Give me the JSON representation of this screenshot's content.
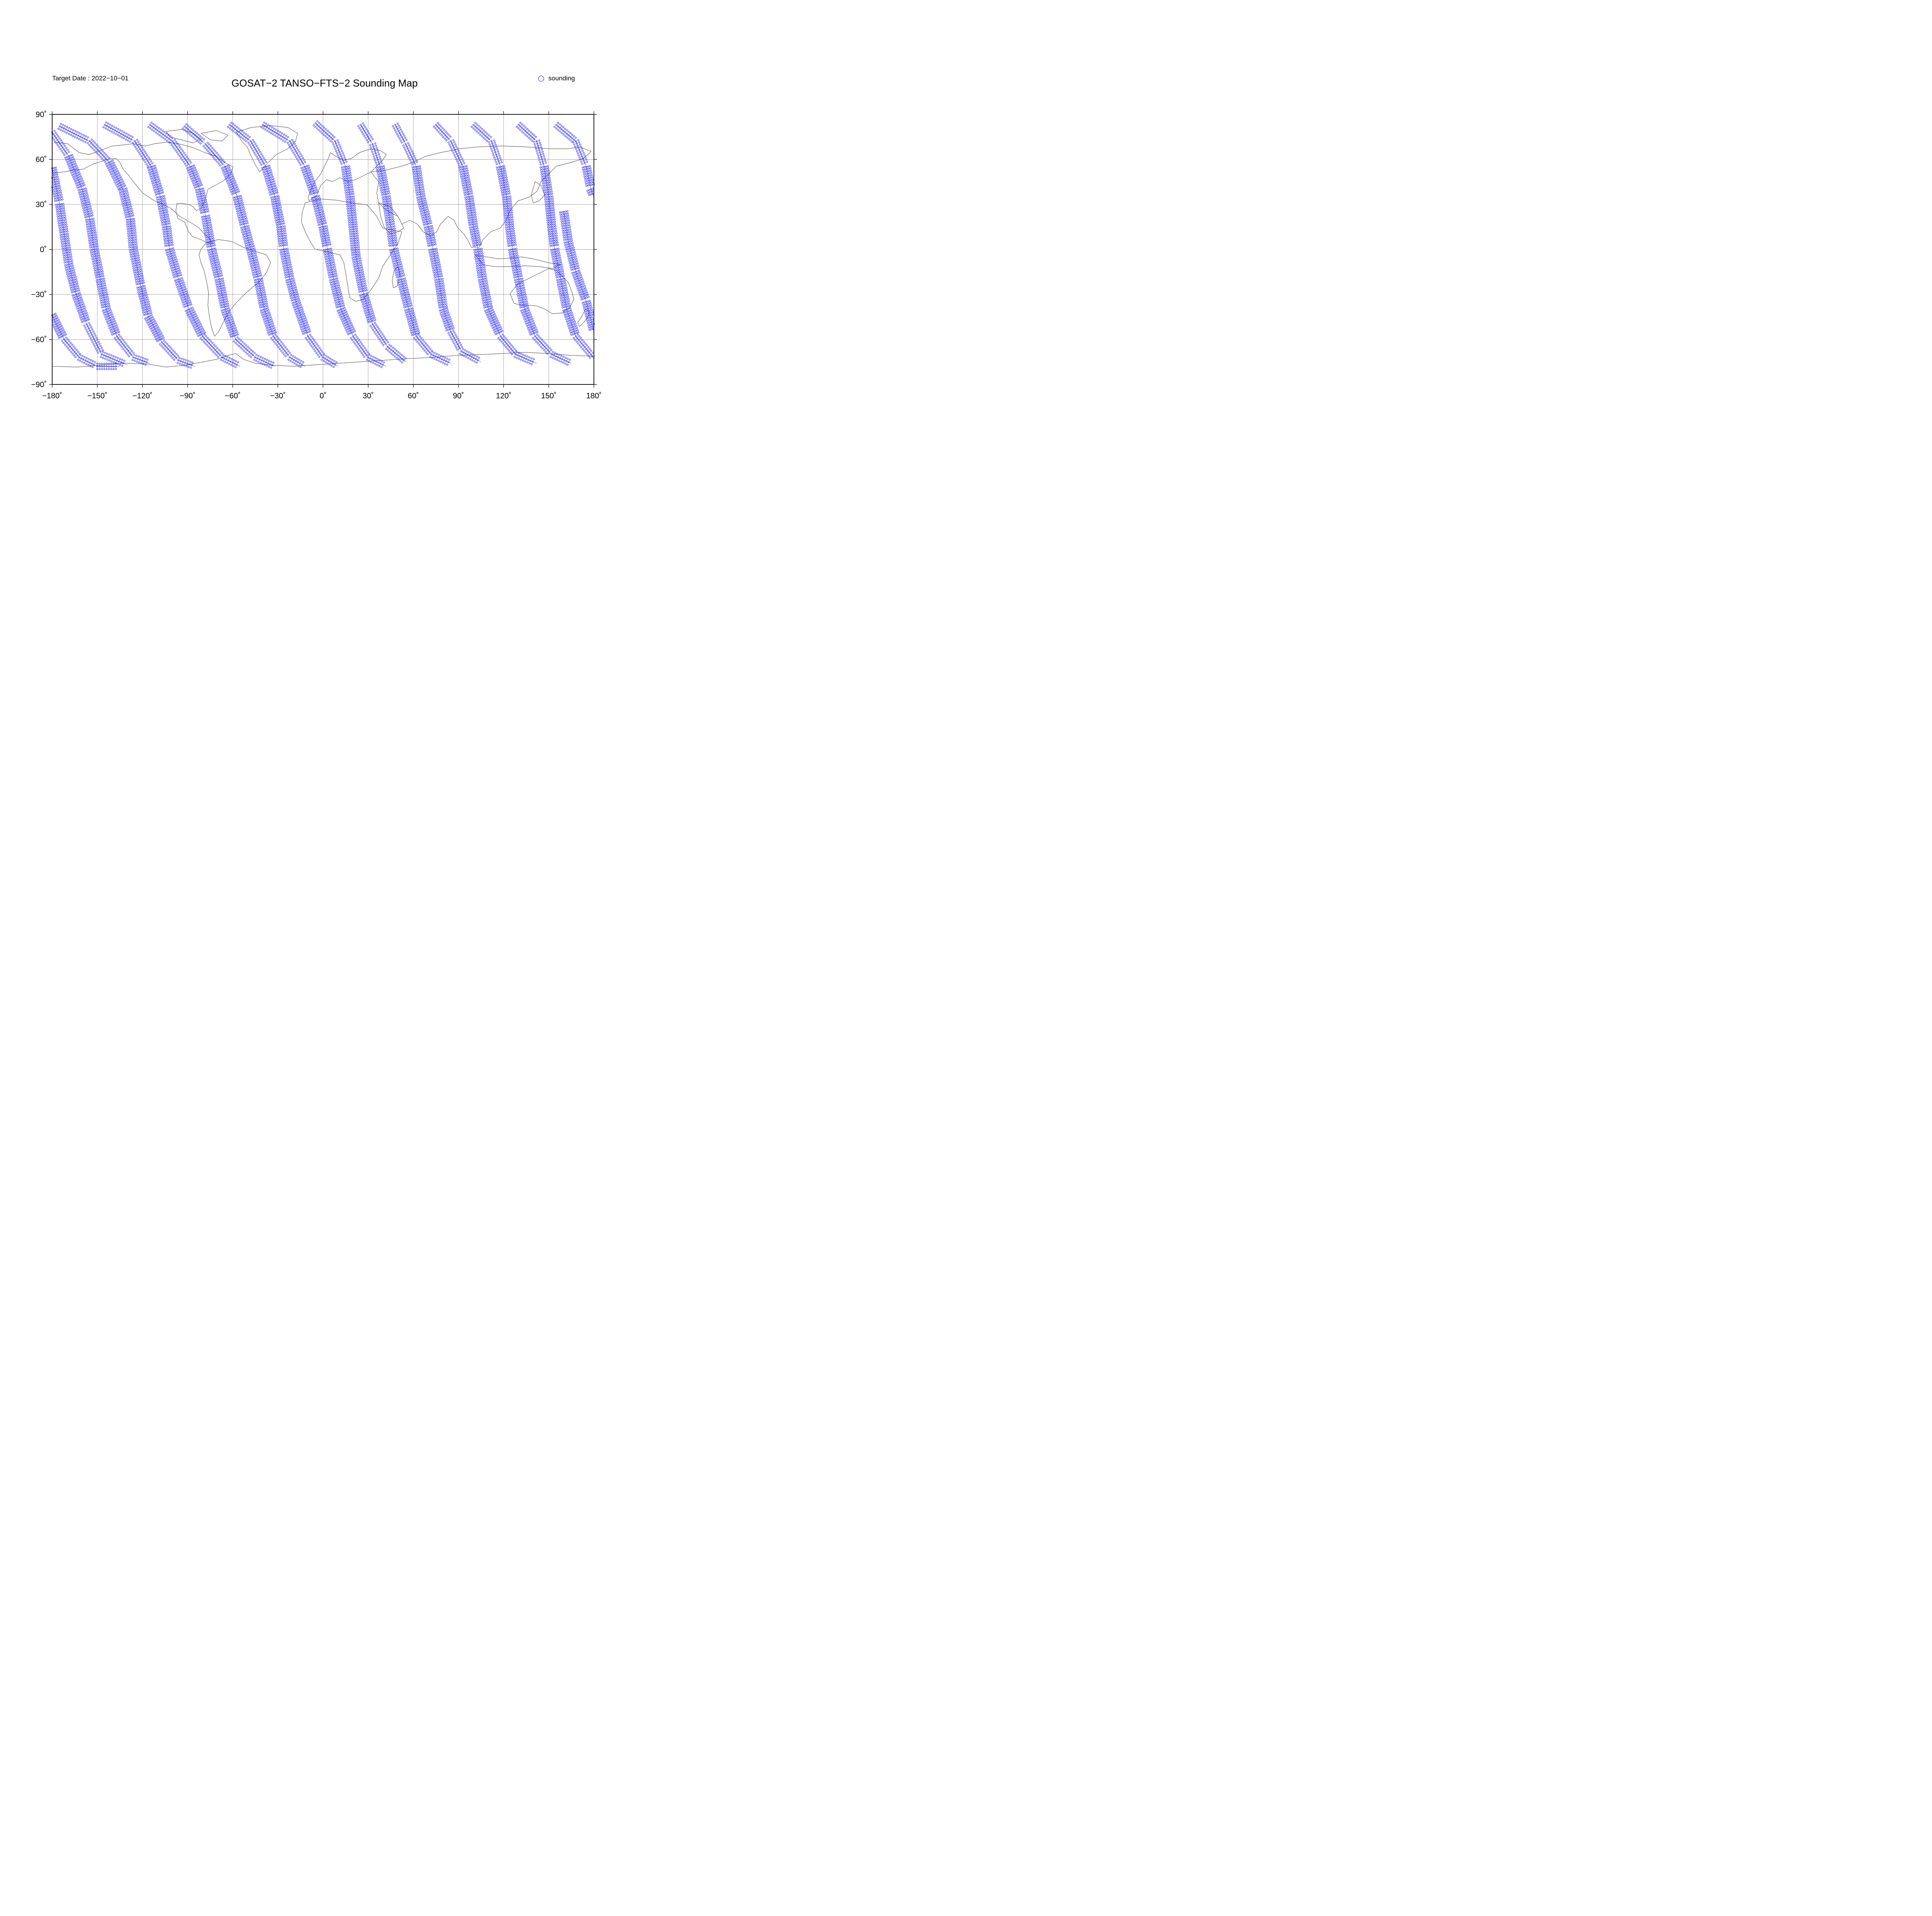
{
  "header": {
    "target_date": "Target Date : 2022−10−01",
    "title": "GOSAT−2 TANSO−FTS−2 Sounding Map"
  },
  "legend": {
    "label": "sounding",
    "marker_icon": "open-circle-icon",
    "marker_color": "#0000ff"
  },
  "axes": {
    "lon_range": [
      -180,
      180
    ],
    "lat_range": [
      -90,
      90
    ],
    "x_ticks": [
      "−180˚",
      "−150˚",
      "−120˚",
      "−90˚",
      "−60˚",
      "−30˚",
      "0˚",
      "30˚",
      "60˚",
      "90˚",
      "120˚",
      "150˚",
      "180˚"
    ],
    "y_ticks": [
      "90˚",
      "60˚",
      "30˚",
      "0˚",
      "−30˚",
      "−60˚",
      "−90˚"
    ],
    "grid": true,
    "grid_color": "#999999"
  },
  "colors": {
    "coastline": "#666666",
    "sounding": "#0000ff",
    "frame": "#000000"
  },
  "chart_data": {
    "type": "scatter",
    "projection": "equirectangular",
    "title": "GOSAT−2 TANSO−FTS−2 Sounding Map",
    "xlim": [
      -180,
      180
    ],
    "ylim": [
      -90,
      90
    ],
    "series": [
      {
        "name": "sounding",
        "marker": "open-circle",
        "tracks": [
          {
            "pts": [
              [
                -180,
                54
              ],
              [
                -175,
                30
              ],
              [
                -172,
                10
              ],
              [
                -169,
                -10
              ],
              [
                -164,
                -30
              ],
              [
                -157,
                -50
              ],
              [
                -147,
                -70
              ],
              [
                -130,
                -77
              ]
            ]
          },
          {
            "pts": [
              [
                -180,
                -44
              ],
              [
                -172,
                -60
              ],
              [
                -162,
                -72
              ],
              [
                -150,
                -78
              ],
              [
                -135,
                -78
              ]
            ]
          },
          {
            "pts": [
              [
                -180,
                78
              ],
              [
                -169,
                62
              ],
              [
                -160,
                40
              ],
              [
                -155,
                20
              ],
              [
                -152,
                0
              ],
              [
                -148,
                -20
              ],
              [
                -144,
                -40
              ],
              [
                -137,
                -58
              ],
              [
                -126,
                -72
              ],
              [
                -115,
                -76
              ]
            ]
          },
          {
            "pts": [
              [
                -175,
                82
              ],
              [
                -155,
                72
              ],
              [
                -142,
                58
              ],
              [
                -133,
                40
              ],
              [
                -128,
                20
              ],
              [
                -126,
                0
              ],
              [
                -121,
                -25
              ],
              [
                -116,
                -45
              ],
              [
                -107,
                -62
              ],
              [
                -96,
                -74
              ],
              [
                -85,
                -78
              ]
            ]
          },
          {
            "pts": [
              [
                -145,
                83
              ],
              [
                -125,
                72
              ],
              [
                -114,
                55
              ],
              [
                -108,
                35
              ],
              [
                -104,
                15
              ],
              [
                -102,
                0
              ],
              [
                -96,
                -20
              ],
              [
                -89,
                -40
              ],
              [
                -80,
                -58
              ],
              [
                -67,
                -72
              ],
              [
                -55,
                -78
              ]
            ]
          },
          {
            "pts": [
              [
                -115,
                83
              ],
              [
                -100,
                72
              ],
              [
                -88,
                55
              ],
              [
                -82,
                40
              ],
              [
                -78,
                22
              ],
              [
                -74,
                0
              ],
              [
                -69,
                -20
              ],
              [
                -65,
                -40
              ],
              [
                -58,
                -60
              ],
              [
                -45,
                -72
              ],
              [
                -32,
                -78
              ]
            ]
          },
          {
            "pts": [
              [
                -92,
                82
              ],
              [
                -78,
                70
              ],
              [
                -65,
                55
              ],
              [
                -57,
                35
              ],
              [
                -52,
                15
              ],
              [
                -48,
                0
              ],
              [
                -43,
                -20
              ],
              [
                -39,
                -40
              ],
              [
                -33,
                -58
              ],
              [
                -22,
                -72
              ],
              [
                -12,
                -78
              ]
            ]
          },
          {
            "pts": [
              [
                -62,
                83
              ],
              [
                -48,
                72
              ],
              [
                -38,
                55
              ],
              [
                -32,
                35
              ],
              [
                -28,
                15
              ],
              [
                -26,
                0
              ],
              [
                -22,
                -20
              ],
              [
                -18,
                -35
              ],
              [
                -10,
                -58
              ],
              [
                0,
                -72
              ],
              [
                10,
                -78
              ]
            ]
          },
          {
            "pts": [
              [
                -40,
                83
              ],
              [
                -22,
                72
              ],
              [
                -12,
                55
              ],
              [
                -5,
                35
              ],
              [
                0,
                15
              ],
              [
                3,
                0
              ],
              [
                7,
                -20
              ],
              [
                12,
                -40
              ],
              [
                20,
                -58
              ],
              [
                30,
                -72
              ],
              [
                42,
                -78
              ]
            ]
          },
          {
            "pts": [
              [
                -5,
                84
              ],
              [
                8,
                72
              ],
              [
                15,
                55
              ],
              [
                18,
                35
              ],
              [
                20,
                15
              ],
              [
                22,
                -5
              ],
              [
                27,
                -30
              ],
              [
                33,
                -50
              ],
              [
                43,
                -65
              ],
              [
                55,
                -75
              ]
            ]
          },
          {
            "pts": [
              [
                25,
                83
              ],
              [
                33,
                70
              ],
              [
                38,
                55
              ],
              [
                42,
                35
              ],
              [
                45,
                15
              ],
              [
                47,
                0
              ],
              [
                52,
                -20
              ],
              [
                57,
                -40
              ],
              [
                62,
                -58
              ],
              [
                72,
                -70
              ],
              [
                85,
                -76
              ]
            ]
          },
          {
            "pts": [
              [
                48,
                83
              ],
              [
                55,
                70
              ],
              [
                62,
                55
              ],
              [
                65,
                35
              ],
              [
                70,
                15
              ],
              [
                73,
                0
              ],
              [
                77,
                -20
              ],
              [
                80,
                -40
              ],
              [
                85,
                -55
              ],
              [
                92,
                -68
              ],
              [
                105,
                -75
              ]
            ]
          },
          {
            "pts": [
              [
                75,
                83
              ],
              [
                85,
                72
              ],
              [
                93,
                55
              ],
              [
                97,
                35
              ],
              [
                100,
                15
              ],
              [
                103,
                0
              ],
              [
                106,
                -20
              ],
              [
                110,
                -40
              ],
              [
                118,
                -58
              ],
              [
                128,
                -70
              ],
              [
                142,
                -76
              ]
            ]
          },
          {
            "pts": [
              [
                100,
                83
              ],
              [
                112,
                72
              ],
              [
                118,
                55
              ],
              [
                122,
                35
              ],
              [
                124,
                15
              ],
              [
                126,
                0
              ],
              [
                130,
                -20
              ],
              [
                134,
                -40
              ],
              [
                141,
                -58
              ],
              [
                152,
                -70
              ],
              [
                165,
                -76
              ]
            ]
          },
          {
            "pts": [
              [
                130,
                83
              ],
              [
                142,
                72
              ],
              [
                147,
                55
              ],
              [
                150,
                35
              ],
              [
                152,
                15
              ],
              [
                154,
                0
              ],
              [
                158,
                -20
              ],
              [
                162,
                -40
              ],
              [
                168,
                -58
              ],
              [
                178,
                -70
              ],
              [
                180,
                -73
              ]
            ]
          },
          {
            "pts": [
              [
                155,
                83
              ],
              [
                168,
                72
              ],
              [
                175,
                55
              ],
              [
                178,
                40
              ],
              [
                180,
                35
              ]
            ]
          },
          {
            "pts": [
              [
                160,
                25
              ],
              [
                163,
                5
              ],
              [
                168,
                -15
              ],
              [
                175,
                -35
              ],
              [
                180,
                -55
              ]
            ]
          }
        ]
      }
    ]
  }
}
